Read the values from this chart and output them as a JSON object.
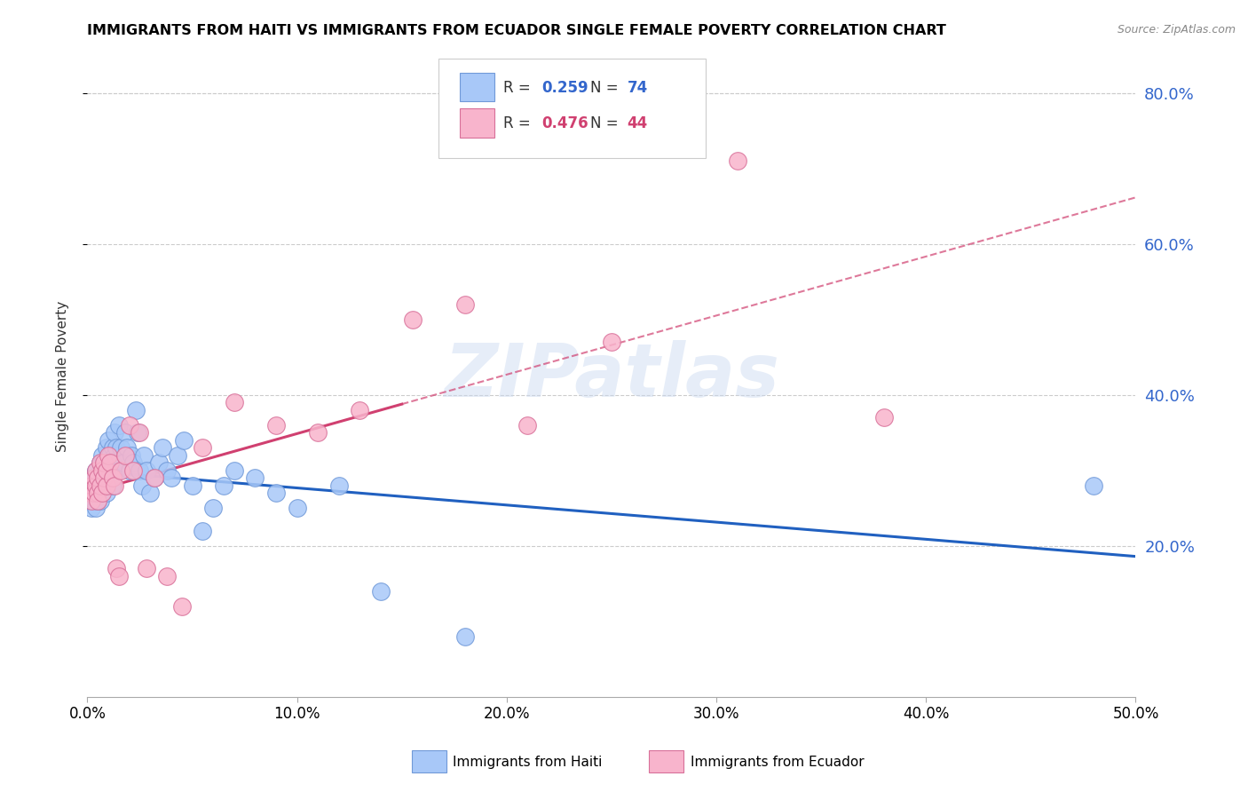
{
  "title": "IMMIGRANTS FROM HAITI VS IMMIGRANTS FROM ECUADOR SINGLE FEMALE POVERTY CORRELATION CHART",
  "source": "Source: ZipAtlas.com",
  "ylabel": "Single Female Poverty",
  "xlim": [
    0.0,
    0.5
  ],
  "ylim": [
    0.0,
    0.85
  ],
  "yticks": [
    0.2,
    0.4,
    0.6,
    0.8
  ],
  "ytick_labels": [
    "20.0%",
    "40.0%",
    "60.0%",
    "80.0%"
  ],
  "xticks": [
    0.0,
    0.1,
    0.2,
    0.3,
    0.4,
    0.5
  ],
  "xtick_labels": [
    "0.0%",
    "10.0%",
    "20.0%",
    "30.0%",
    "40.0%",
    "50.0%"
  ],
  "haiti_color": "#a8c8f8",
  "ecuador_color": "#f8b4cc",
  "haiti_edge_color": "#7099d8",
  "ecuador_edge_color": "#d87099",
  "trend_haiti_color": "#2060c0",
  "trend_ecuador_color": "#d04070",
  "watermark": "ZIPatlas",
  "haiti_x": [
    0.001,
    0.002,
    0.002,
    0.003,
    0.003,
    0.003,
    0.004,
    0.004,
    0.004,
    0.005,
    0.005,
    0.005,
    0.005,
    0.006,
    0.006,
    0.006,
    0.006,
    0.007,
    0.007,
    0.007,
    0.007,
    0.008,
    0.008,
    0.008,
    0.009,
    0.009,
    0.009,
    0.01,
    0.01,
    0.01,
    0.011,
    0.011,
    0.012,
    0.012,
    0.012,
    0.013,
    0.013,
    0.014,
    0.014,
    0.015,
    0.015,
    0.016,
    0.017,
    0.018,
    0.019,
    0.02,
    0.021,
    0.022,
    0.023,
    0.024,
    0.025,
    0.026,
    0.027,
    0.028,
    0.03,
    0.032,
    0.034,
    0.036,
    0.038,
    0.04,
    0.043,
    0.046,
    0.05,
    0.055,
    0.06,
    0.065,
    0.07,
    0.08,
    0.09,
    0.1,
    0.12,
    0.14,
    0.18,
    0.48
  ],
  "haiti_y": [
    0.26,
    0.27,
    0.25,
    0.28,
    0.26,
    0.29,
    0.27,
    0.3,
    0.25,
    0.28,
    0.26,
    0.29,
    0.27,
    0.3,
    0.28,
    0.26,
    0.31,
    0.29,
    0.27,
    0.32,
    0.3,
    0.28,
    0.31,
    0.29,
    0.33,
    0.27,
    0.3,
    0.31,
    0.29,
    0.34,
    0.32,
    0.3,
    0.33,
    0.28,
    0.31,
    0.32,
    0.35,
    0.3,
    0.33,
    0.36,
    0.3,
    0.33,
    0.31,
    0.35,
    0.33,
    0.3,
    0.32,
    0.31,
    0.38,
    0.35,
    0.3,
    0.28,
    0.32,
    0.3,
    0.27,
    0.29,
    0.31,
    0.33,
    0.3,
    0.29,
    0.32,
    0.34,
    0.28,
    0.22,
    0.25,
    0.28,
    0.3,
    0.29,
    0.27,
    0.25,
    0.28,
    0.14,
    0.08,
    0.28
  ],
  "ecuador_x": [
    0.001,
    0.002,
    0.002,
    0.003,
    0.003,
    0.004,
    0.004,
    0.005,
    0.005,
    0.005,
    0.006,
    0.006,
    0.007,
    0.007,
    0.008,
    0.008,
    0.009,
    0.009,
    0.01,
    0.011,
    0.012,
    0.013,
    0.014,
    0.015,
    0.016,
    0.018,
    0.02,
    0.022,
    0.025,
    0.028,
    0.032,
    0.038,
    0.045,
    0.055,
    0.07,
    0.09,
    0.11,
    0.13,
    0.155,
    0.18,
    0.21,
    0.25,
    0.31,
    0.38
  ],
  "ecuador_y": [
    0.27,
    0.28,
    0.26,
    0.29,
    0.27,
    0.28,
    0.3,
    0.27,
    0.29,
    0.26,
    0.31,
    0.28,
    0.3,
    0.27,
    0.29,
    0.31,
    0.28,
    0.3,
    0.32,
    0.31,
    0.29,
    0.28,
    0.17,
    0.16,
    0.3,
    0.32,
    0.36,
    0.3,
    0.35,
    0.17,
    0.29,
    0.16,
    0.12,
    0.33,
    0.39,
    0.36,
    0.35,
    0.38,
    0.5,
    0.52,
    0.36,
    0.47,
    0.71,
    0.37
  ]
}
